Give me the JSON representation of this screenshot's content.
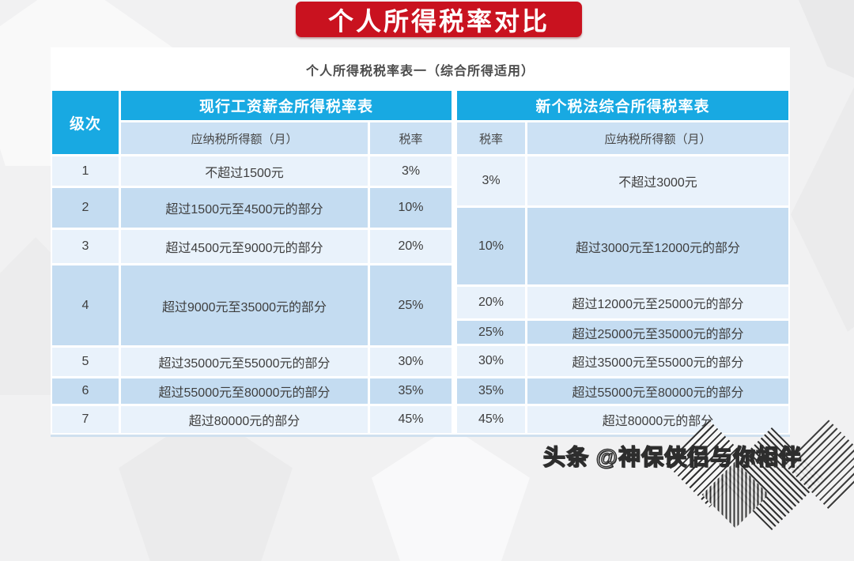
{
  "title_banner": {
    "text": "个人所得税率对比"
  },
  "card": {
    "subtitle": "个人所得税税率表一（综合所得适用）"
  },
  "table": {
    "level_header": "级次",
    "left": {
      "title": "现行工资薪金所得税率表",
      "income_header": "应纳税所得额（月）",
      "rate_header": "税率",
      "rows": [
        {
          "level": "1",
          "income": "不超过1500元",
          "rate": "3%"
        },
        {
          "level": "2",
          "income": "超过1500元至4500元的部分",
          "rate": "10%"
        },
        {
          "level": "3",
          "income": "超过4500元至9000元的部分",
          "rate": "20%"
        },
        {
          "level": "4",
          "income": "超过9000元至35000元的部分",
          "rate": "25%"
        },
        {
          "level": "5",
          "income": "超过35000元至55000元的部分",
          "rate": "30%"
        },
        {
          "level": "6",
          "income": "超过55000元至80000元的部分",
          "rate": "35%"
        },
        {
          "level": "7",
          "income": "超过80000元的部分",
          "rate": "45%"
        }
      ]
    },
    "right": {
      "title": "新个税法综合所得税率表",
      "rate_header": "税率",
      "income_header": "应纳税所得额（月）",
      "rows": [
        {
          "rate": "3%",
          "income": "不超过3000元"
        },
        {
          "rate": "10%",
          "income": "超过3000元至12000元的部分"
        },
        {
          "rate": "20%",
          "income": "超过12000元至25000元的部分"
        },
        {
          "rate": "25%",
          "income": "超过25000元至35000元的部分"
        },
        {
          "rate": "30%",
          "income": "超过35000元至55000元的部分"
        },
        {
          "rate": "35%",
          "income": "超过55000元至80000元的部分"
        },
        {
          "rate": "45%",
          "income": "超过80000元的部分"
        }
      ]
    }
  },
  "watermark": {
    "text": "头条 @神保侠侣与你相伴"
  },
  "colors": {
    "banner_red": "#c9121f",
    "header_cyan": "#18a9e2",
    "subheader_blue": "#cce1f4",
    "row_light": "#e9f2fb",
    "row_dark": "#c4dcf1",
    "page_background": "#f1f1f2"
  },
  "chart_data": {
    "type": "table",
    "title": "个人所得税税率表一（综合所得适用）",
    "group_headers": [
      "级次",
      "现行工资薪金所得税率表",
      "新个税法综合所得税率表"
    ],
    "columns": [
      "级次",
      "现行·应纳税所得额（月）",
      "现行·税率",
      "新个税法·税率",
      "新个税法·应纳税所得额（月）"
    ],
    "rows": [
      [
        "1",
        "不超过1500元",
        "3%",
        "3%",
        "不超过3000元"
      ],
      [
        "2",
        "超过1500元至4500元的部分",
        "10%",
        "10%",
        "超过3000元至12000元的部分"
      ],
      [
        "3",
        "超过4500元至9000元的部分",
        "20%",
        "20%",
        "超过12000元至25000元的部分"
      ],
      [
        "4",
        "超过9000元至35000元的部分",
        "25%",
        "25%",
        "超过25000元至35000元的部分"
      ],
      [
        "5",
        "超过35000元至55000元的部分",
        "30%",
        "30%",
        "超过35000元至55000元的部分"
      ],
      [
        "6",
        "超过55000元至80000元的部分",
        "35%",
        "35%",
        "超过55000元至80000元的部分"
      ],
      [
        "7",
        "超过80000元的部分",
        "45%",
        "45%",
        "超过80000元的部分"
      ]
    ]
  }
}
